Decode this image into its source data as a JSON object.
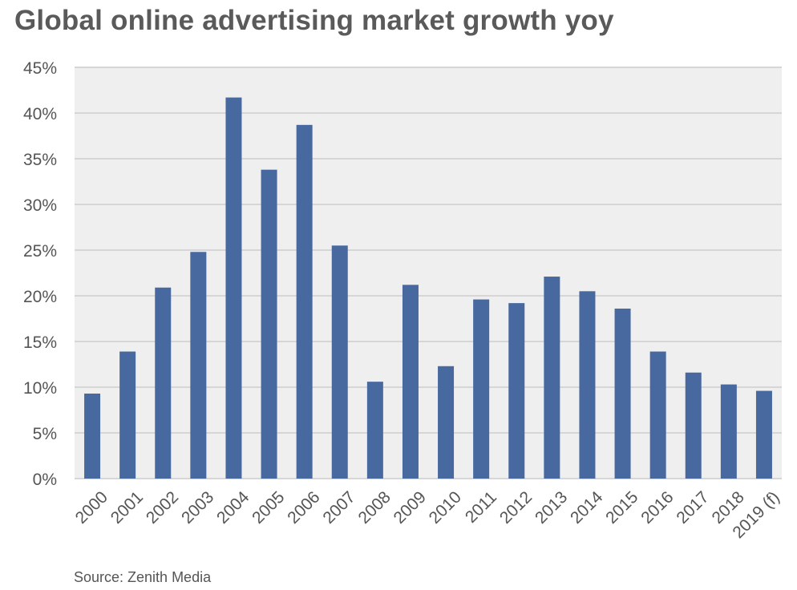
{
  "chart_data": {
    "type": "bar",
    "title": "Global online advertising market growth yoy",
    "source": "Source: Zenith Media",
    "xlabel": "",
    "ylabel": "",
    "ylim": [
      0,
      45
    ],
    "yticks": [
      0,
      5,
      10,
      15,
      20,
      25,
      30,
      35,
      40,
      45
    ],
    "ytick_labels": [
      "0%",
      "5%",
      "10%",
      "15%",
      "20%",
      "25%",
      "30%",
      "35%",
      "40%",
      "45%"
    ],
    "grid": true,
    "legend": "none",
    "categories": [
      "2000",
      "2001",
      "2002",
      "2003",
      "2004",
      "2005",
      "2006",
      "2007",
      "2008",
      "2009",
      "2010",
      "2011",
      "2012",
      "2013",
      "2014",
      "2015",
      "2016",
      "2017",
      "2018",
      "2019 (f)"
    ],
    "values": [
      9.3,
      13.9,
      20.9,
      24.8,
      41.7,
      33.8,
      38.7,
      25.5,
      10.6,
      21.2,
      12.3,
      19.6,
      19.2,
      22.1,
      20.5,
      18.6,
      13.9,
      11.6,
      10.3,
      9.6
    ],
    "colors": {
      "bar": "#4869a0",
      "plot_bg": "#efefef",
      "grid": "#d6d6d6"
    }
  }
}
